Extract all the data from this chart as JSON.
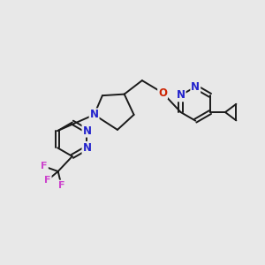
{
  "bg_color": "#e8e8e8",
  "bond_color": "#1a1a1a",
  "bond_width": 1.5,
  "atom_colors": {
    "N": "#2222cc",
    "O": "#cc2200",
    "F": "#cc44cc",
    "C": "#1a1a1a"
  }
}
